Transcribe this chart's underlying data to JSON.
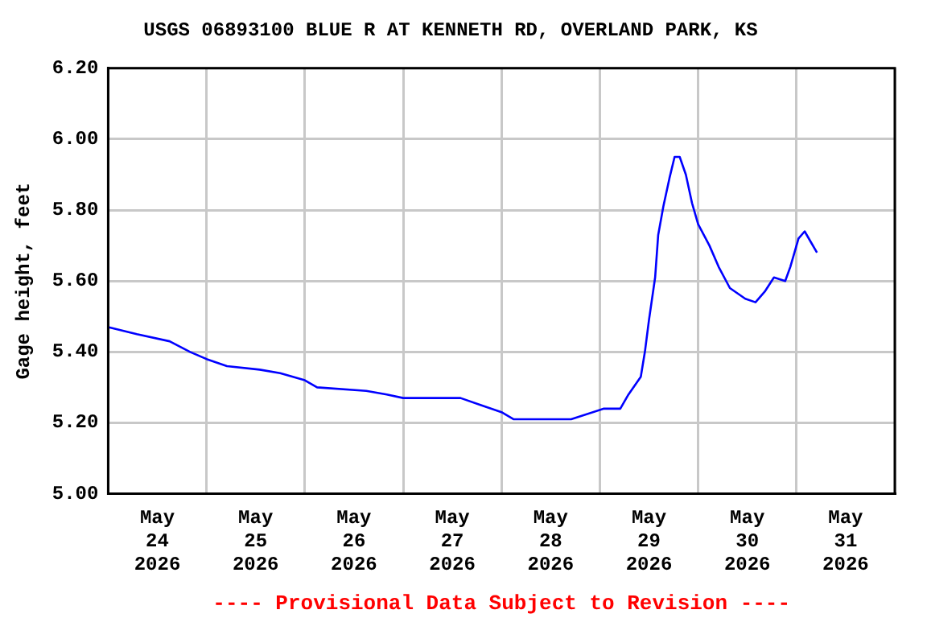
{
  "chart_data": {
    "type": "line",
    "title": "USGS 06893100 BLUE R AT KENNETH RD, OVERLAND PARK, KS",
    "ylabel": "Gage height, feet",
    "annotations": [
      "---- Provisional Data Subject to Revision ----"
    ],
    "x": [
      "2026-05-24T00:00",
      "2026-05-24T07:00",
      "2026-05-24T15:00",
      "2026-05-24T20:00",
      "2026-05-25T00:00",
      "2026-05-25T05:00",
      "2026-05-25T13:00",
      "2026-05-25T18:00",
      "2026-05-26T00:00",
      "2026-05-26T03:00",
      "2026-05-26T15:00",
      "2026-05-26T20:00",
      "2026-05-27T00:00",
      "2026-05-27T14:00",
      "2026-05-27T19:00",
      "2026-05-28T00:00",
      "2026-05-28T03:00",
      "2026-05-28T17:00",
      "2026-05-29T01:00",
      "2026-05-29T05:00",
      "2026-05-29T07:00",
      "2026-05-29T10:00",
      "2026-05-29T11:00",
      "2026-05-29T12:00",
      "2026-05-29T13:30",
      "2026-05-29T14:15",
      "2026-05-29T15:30",
      "2026-05-29T17:00",
      "2026-05-29T18:15",
      "2026-05-29T19:30",
      "2026-05-29T21:00",
      "2026-05-29T22:30",
      "2026-05-30T00:00",
      "2026-05-30T02:45",
      "2026-05-30T05:00",
      "2026-05-30T07:45",
      "2026-05-30T11:30",
      "2026-05-30T14:00",
      "2026-05-30T16:15",
      "2026-05-30T18:30",
      "2026-05-30T21:15",
      "2026-05-30T22:30",
      "2026-05-31T00:30",
      "2026-05-31T02:00",
      "2026-05-31T03:30",
      "2026-05-31T05:00"
    ],
    "series": [
      {
        "color": "#0000ff",
        "values": [
          5.47,
          5.45,
          5.43,
          5.4,
          5.38,
          5.36,
          5.35,
          5.34,
          5.32,
          5.3,
          5.29,
          5.28,
          5.27,
          5.27,
          5.25,
          5.23,
          5.21,
          5.21,
          5.24,
          5.24,
          5.28,
          5.33,
          5.4,
          5.49,
          5.61,
          5.73,
          5.81,
          5.89,
          5.95,
          5.95,
          5.9,
          5.82,
          5.76,
          5.7,
          5.64,
          5.58,
          5.55,
          5.54,
          5.57,
          5.61,
          5.6,
          5.64,
          5.72,
          5.74,
          5.71,
          5.68
        ]
      }
    ],
    "xlim": [
      "2026-05-24T00:00",
      "2026-06-01T00:00"
    ],
    "xticks": [
      {
        "value": "2026-05-24T00:00",
        "label": null
      },
      {
        "value": "2026-05-24T12:00",
        "label": "May\n24\n2026"
      },
      {
        "value": "2026-05-25T00:00",
        "label": null
      },
      {
        "value": "2026-05-25T12:00",
        "label": "May\n25\n2026"
      },
      {
        "value": "2026-05-26T00:00",
        "label": null
      },
      {
        "value": "2026-05-26T12:00",
        "label": "May\n26\n2026"
      },
      {
        "value": "2026-05-27T00:00",
        "label": null
      },
      {
        "value": "2026-05-27T12:00",
        "label": "May\n27\n2026"
      },
      {
        "value": "2026-05-28T00:00",
        "label": null
      },
      {
        "value": "2026-05-28T12:00",
        "label": "May\n28\n2026"
      },
      {
        "value": "2026-05-29T00:00",
        "label": null
      },
      {
        "value": "2026-05-29T12:00",
        "label": "May\n29\n2026"
      },
      {
        "value": "2026-05-30T00:00",
        "label": null
      },
      {
        "value": "2026-05-30T12:00",
        "label": "May\n30\n2026"
      },
      {
        "value": "2026-05-31T00:00",
        "label": null
      },
      {
        "value": "2026-05-31T12:00",
        "label": "May\n31\n2026"
      },
      {
        "value": "2026-06-01T00:00",
        "label": null
      }
    ],
    "ylim": [
      5.0,
      6.2
    ],
    "yticks": [
      {
        "value": 5.0,
        "label": "5.00"
      },
      {
        "value": 5.2,
        "label": "5.20"
      },
      {
        "value": 5.4,
        "label": "5.40"
      },
      {
        "value": 5.6,
        "label": "5.60"
      },
      {
        "value": 5.8,
        "label": "5.80"
      },
      {
        "value": 6.0,
        "label": "6.00"
      },
      {
        "value": 6.2,
        "label": "6.20"
      }
    ],
    "grid": true,
    "legend": false,
    "marker": "none",
    "line_style": "solid"
  }
}
